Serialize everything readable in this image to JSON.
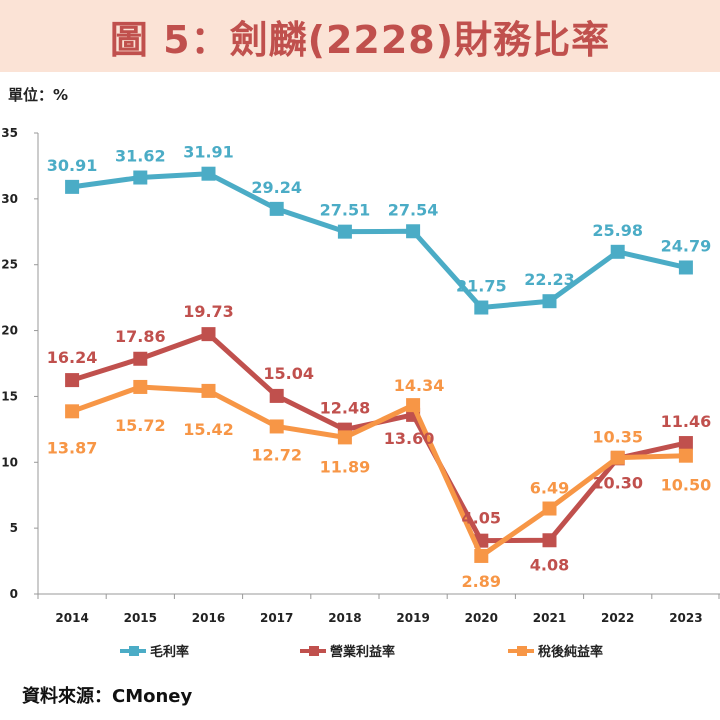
{
  "title": "圖 5：劍麟(2228)財務比率",
  "unit": "單位：%",
  "source": "資料來源：CMoney",
  "chart_data": {
    "type": "line",
    "categories": [
      "2014",
      "2015",
      "2016",
      "2017",
      "2018",
      "2019",
      "2020",
      "2021",
      "2022",
      "2023"
    ],
    "ylim": [
      0,
      35
    ],
    "yticks": [
      0,
      5,
      10,
      15,
      20,
      25,
      30,
      35
    ],
    "series": [
      {
        "name": "毛利率",
        "color": "#4bacc6",
        "values": [
          30.91,
          31.62,
          31.91,
          29.24,
          27.51,
          27.54,
          21.75,
          22.23,
          25.98,
          24.79
        ],
        "labels": [
          "30.91",
          "31.62",
          "31.91",
          "29.24",
          "27.51",
          "27.54",
          "21.75",
          "22.23",
          "25.98",
          "24.79"
        ]
      },
      {
        "name": "營業利益率",
        "color": "#c0504d",
        "values": [
          16.24,
          17.86,
          19.73,
          15.04,
          12.48,
          13.6,
          4.05,
          4.08,
          10.3,
          11.46
        ],
        "labels": [
          "16.24",
          "17.86",
          "19.73",
          "15.04",
          "12.48",
          "13.60",
          "4.05",
          "4.08",
          "10.30",
          "11.46"
        ]
      },
      {
        "name": "稅後純益率",
        "color": "#f79646",
        "values": [
          13.87,
          15.72,
          15.42,
          12.72,
          11.89,
          14.34,
          2.89,
          6.49,
          10.35,
          10.5
        ],
        "labels": [
          "13.87",
          "15.72",
          "15.42",
          "12.72",
          "11.89",
          "14.34",
          "2.89",
          "6.49",
          "10.35",
          "10.50"
        ]
      }
    ],
    "legend_position": "bottom"
  }
}
